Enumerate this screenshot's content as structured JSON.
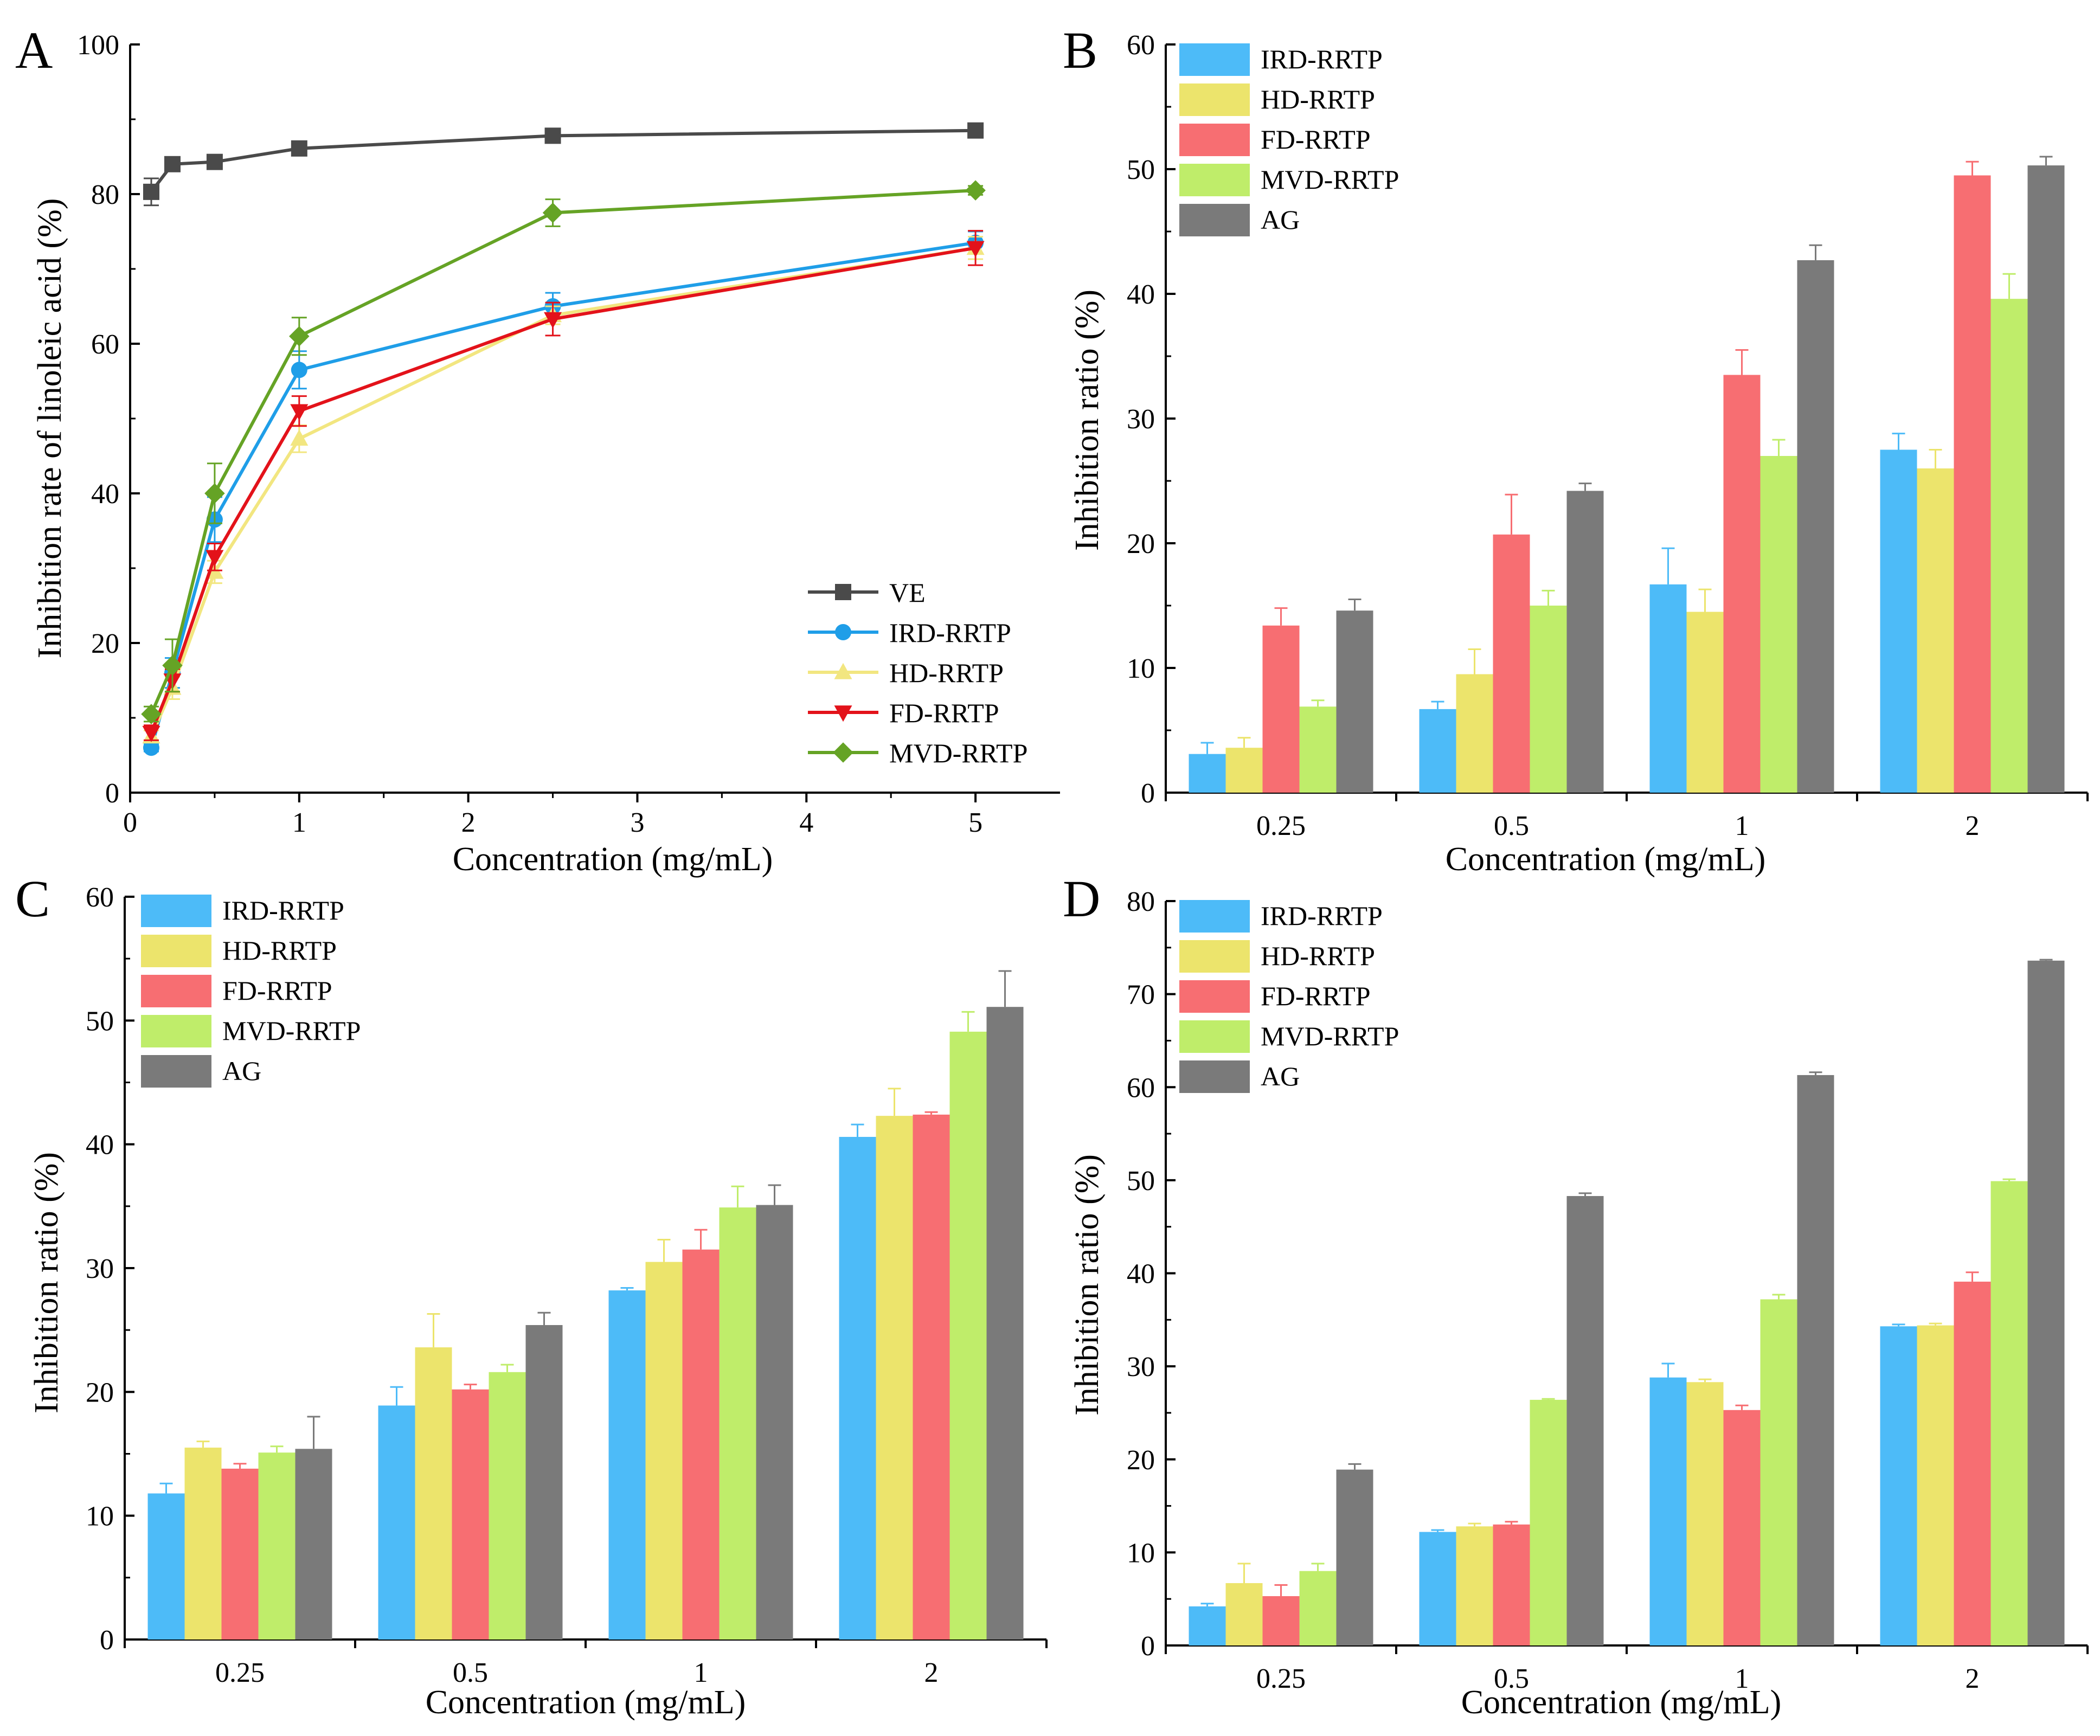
{
  "colors": {
    "VE": "#4a4a4a",
    "IRD-RRTP": "#1f9ee8",
    "HD-RRTP": "#f2e680",
    "FD-RRTP": "#e3121a",
    "MVD-RRTP": "#65a325",
    "bar_IRD": "#4dbbf8",
    "bar_HD": "#ece46c",
    "bar_FD": "#f76e72",
    "bar_MVD": "#bfed6a",
    "bar_AG": "#7a7a7a"
  },
  "chart_data": [
    {
      "panel": "A",
      "type": "line",
      "xlabel": "Concentration (mg/mL)",
      "ylabel": "Inhibition rate of linoleic acid (%)",
      "xlim": [
        0,
        5.5
      ],
      "ylim": [
        0,
        100
      ],
      "xticks": [
        "0",
        "1",
        "2",
        "3",
        "4",
        "5"
      ],
      "yticks": [
        "0",
        "20",
        "40",
        "60",
        "80",
        "100"
      ],
      "legend_position": "bottom-right",
      "x": [
        0.125,
        0.25,
        0.5,
        1,
        2.5,
        5
      ],
      "series": [
        {
          "name": "VE",
          "marker": "square",
          "values": [
            80.3,
            84.0,
            84.3,
            86.1,
            87.8,
            88.5
          ],
          "errors": [
            1.8,
            0.6,
            0.5,
            0.6,
            0.4,
            0.4
          ]
        },
        {
          "name": "IRD-RRTP",
          "marker": "circle",
          "values": [
            6.0,
            16.0,
            36.5,
            56.5,
            65.0,
            73.5
          ],
          "errors": [
            0.5,
            2.0,
            3.0,
            2.5,
            1.8,
            1.5
          ]
        },
        {
          "name": "HD-RRTP",
          "marker": "triangle-up",
          "values": [
            7.5,
            14.0,
            29.5,
            47.3,
            63.8,
            72.8
          ],
          "errors": [
            0.8,
            1.5,
            1.5,
            1.8,
            1.2,
            1.5
          ]
        },
        {
          "name": "FD-RRTP",
          "marker": "triangle-down",
          "values": [
            8.0,
            15.0,
            31.5,
            51.0,
            63.3,
            72.8
          ],
          "errors": [
            1.0,
            1.5,
            1.8,
            2.0,
            2.2,
            2.3
          ]
        },
        {
          "name": "MVD-RRTP",
          "marker": "diamond",
          "values": [
            10.5,
            17.0,
            40.0,
            61.0,
            77.5,
            80.5
          ],
          "errors": [
            1.0,
            3.5,
            4.0,
            2.5,
            1.8,
            0.6
          ]
        }
      ]
    },
    {
      "panel": "B",
      "type": "bar",
      "xlabel": "Concentration (mg/mL)",
      "ylabel": "Inhibition ratio (%)",
      "ylim": [
        0,
        60
      ],
      "yticks": [
        "0",
        "10",
        "20",
        "30",
        "40",
        "50",
        "60"
      ],
      "categories": [
        "0.25",
        "0.5",
        "1",
        "2"
      ],
      "legend_position": "top-left",
      "series": [
        {
          "name": "IRD-RRTP",
          "values": [
            3.1,
            6.7,
            16.7,
            27.5
          ],
          "errors": [
            0.9,
            0.6,
            2.9,
            1.3
          ]
        },
        {
          "name": "HD-RRTP",
          "values": [
            3.6,
            9.5,
            14.5,
            26.0
          ],
          "errors": [
            0.8,
            2.0,
            1.8,
            1.5
          ]
        },
        {
          "name": "FD-RRTP",
          "values": [
            13.4,
            20.7,
            33.5,
            49.5
          ],
          "errors": [
            1.4,
            3.2,
            2.0,
            1.1
          ]
        },
        {
          "name": "MVD-RRTP",
          "values": [
            6.9,
            15.0,
            27.0,
            39.6
          ],
          "errors": [
            0.5,
            1.2,
            1.3,
            2.0
          ]
        },
        {
          "name": "AG",
          "values": [
            14.6,
            24.2,
            42.7,
            50.3
          ],
          "errors": [
            0.9,
            0.6,
            1.2,
            0.7
          ]
        }
      ]
    },
    {
      "panel": "C",
      "type": "bar",
      "xlabel": "Concentration (mg/mL)",
      "ylabel": "Inhibition ratio (%)",
      "ylim": [
        0,
        60
      ],
      "yticks": [
        "0",
        "10",
        "20",
        "30",
        "40",
        "50",
        "60"
      ],
      "categories": [
        "0.25",
        "0.5",
        "1",
        "2"
      ],
      "legend_position": "top-left",
      "series": [
        {
          "name": "IRD-RRTP",
          "values": [
            11.8,
            18.9,
            28.2,
            40.6
          ],
          "errors": [
            0.8,
            1.5,
            0.2,
            1.0
          ]
        },
        {
          "name": "HD-RRTP",
          "values": [
            15.5,
            23.6,
            30.5,
            42.3
          ],
          "errors": [
            0.5,
            2.7,
            1.8,
            2.2
          ]
        },
        {
          "name": "FD-RRTP",
          "values": [
            13.8,
            20.2,
            31.5,
            42.4
          ],
          "errors": [
            0.4,
            0.4,
            1.6,
            0.2
          ]
        },
        {
          "name": "MVD-RRTP",
          "values": [
            15.1,
            21.6,
            34.9,
            49.1
          ],
          "errors": [
            0.5,
            0.6,
            1.7,
            1.6
          ]
        },
        {
          "name": "AG",
          "values": [
            15.4,
            25.4,
            35.1,
            51.1
          ],
          "errors": [
            2.6,
            1.0,
            1.6,
            2.9
          ]
        }
      ]
    },
    {
      "panel": "D",
      "type": "bar",
      "xlabel": "Concentration (mg/mL)",
      "ylabel": "Inhibition ratio (%)",
      "ylim": [
        0,
        80
      ],
      "yticks": [
        "0",
        "10",
        "20",
        "30",
        "40",
        "50",
        "60",
        "70",
        "80"
      ],
      "categories": [
        "0.25",
        "0.5",
        "1",
        "2"
      ],
      "legend_position": "top-left",
      "series": [
        {
          "name": "IRD-RRTP",
          "values": [
            4.2,
            12.2,
            28.8,
            34.3
          ],
          "errors": [
            0.3,
            0.2,
            1.5,
            0.2
          ]
        },
        {
          "name": "HD-RRTP",
          "values": [
            6.7,
            12.8,
            28.3,
            34.4
          ],
          "errors": [
            2.1,
            0.3,
            0.3,
            0.2
          ]
        },
        {
          "name": "FD-RRTP",
          "values": [
            5.3,
            13.0,
            25.3,
            39.1
          ],
          "errors": [
            1.2,
            0.3,
            0.5,
            1.0
          ]
        },
        {
          "name": "MVD-RRTP",
          "values": [
            8.0,
            26.4,
            37.2,
            49.9
          ],
          "errors": [
            0.8,
            0.1,
            0.5,
            0.2
          ]
        },
        {
          "name": "AG",
          "values": [
            18.9,
            48.3,
            61.3,
            73.6
          ],
          "errors": [
            0.6,
            0.3,
            0.3,
            0.1
          ]
        }
      ]
    }
  ]
}
